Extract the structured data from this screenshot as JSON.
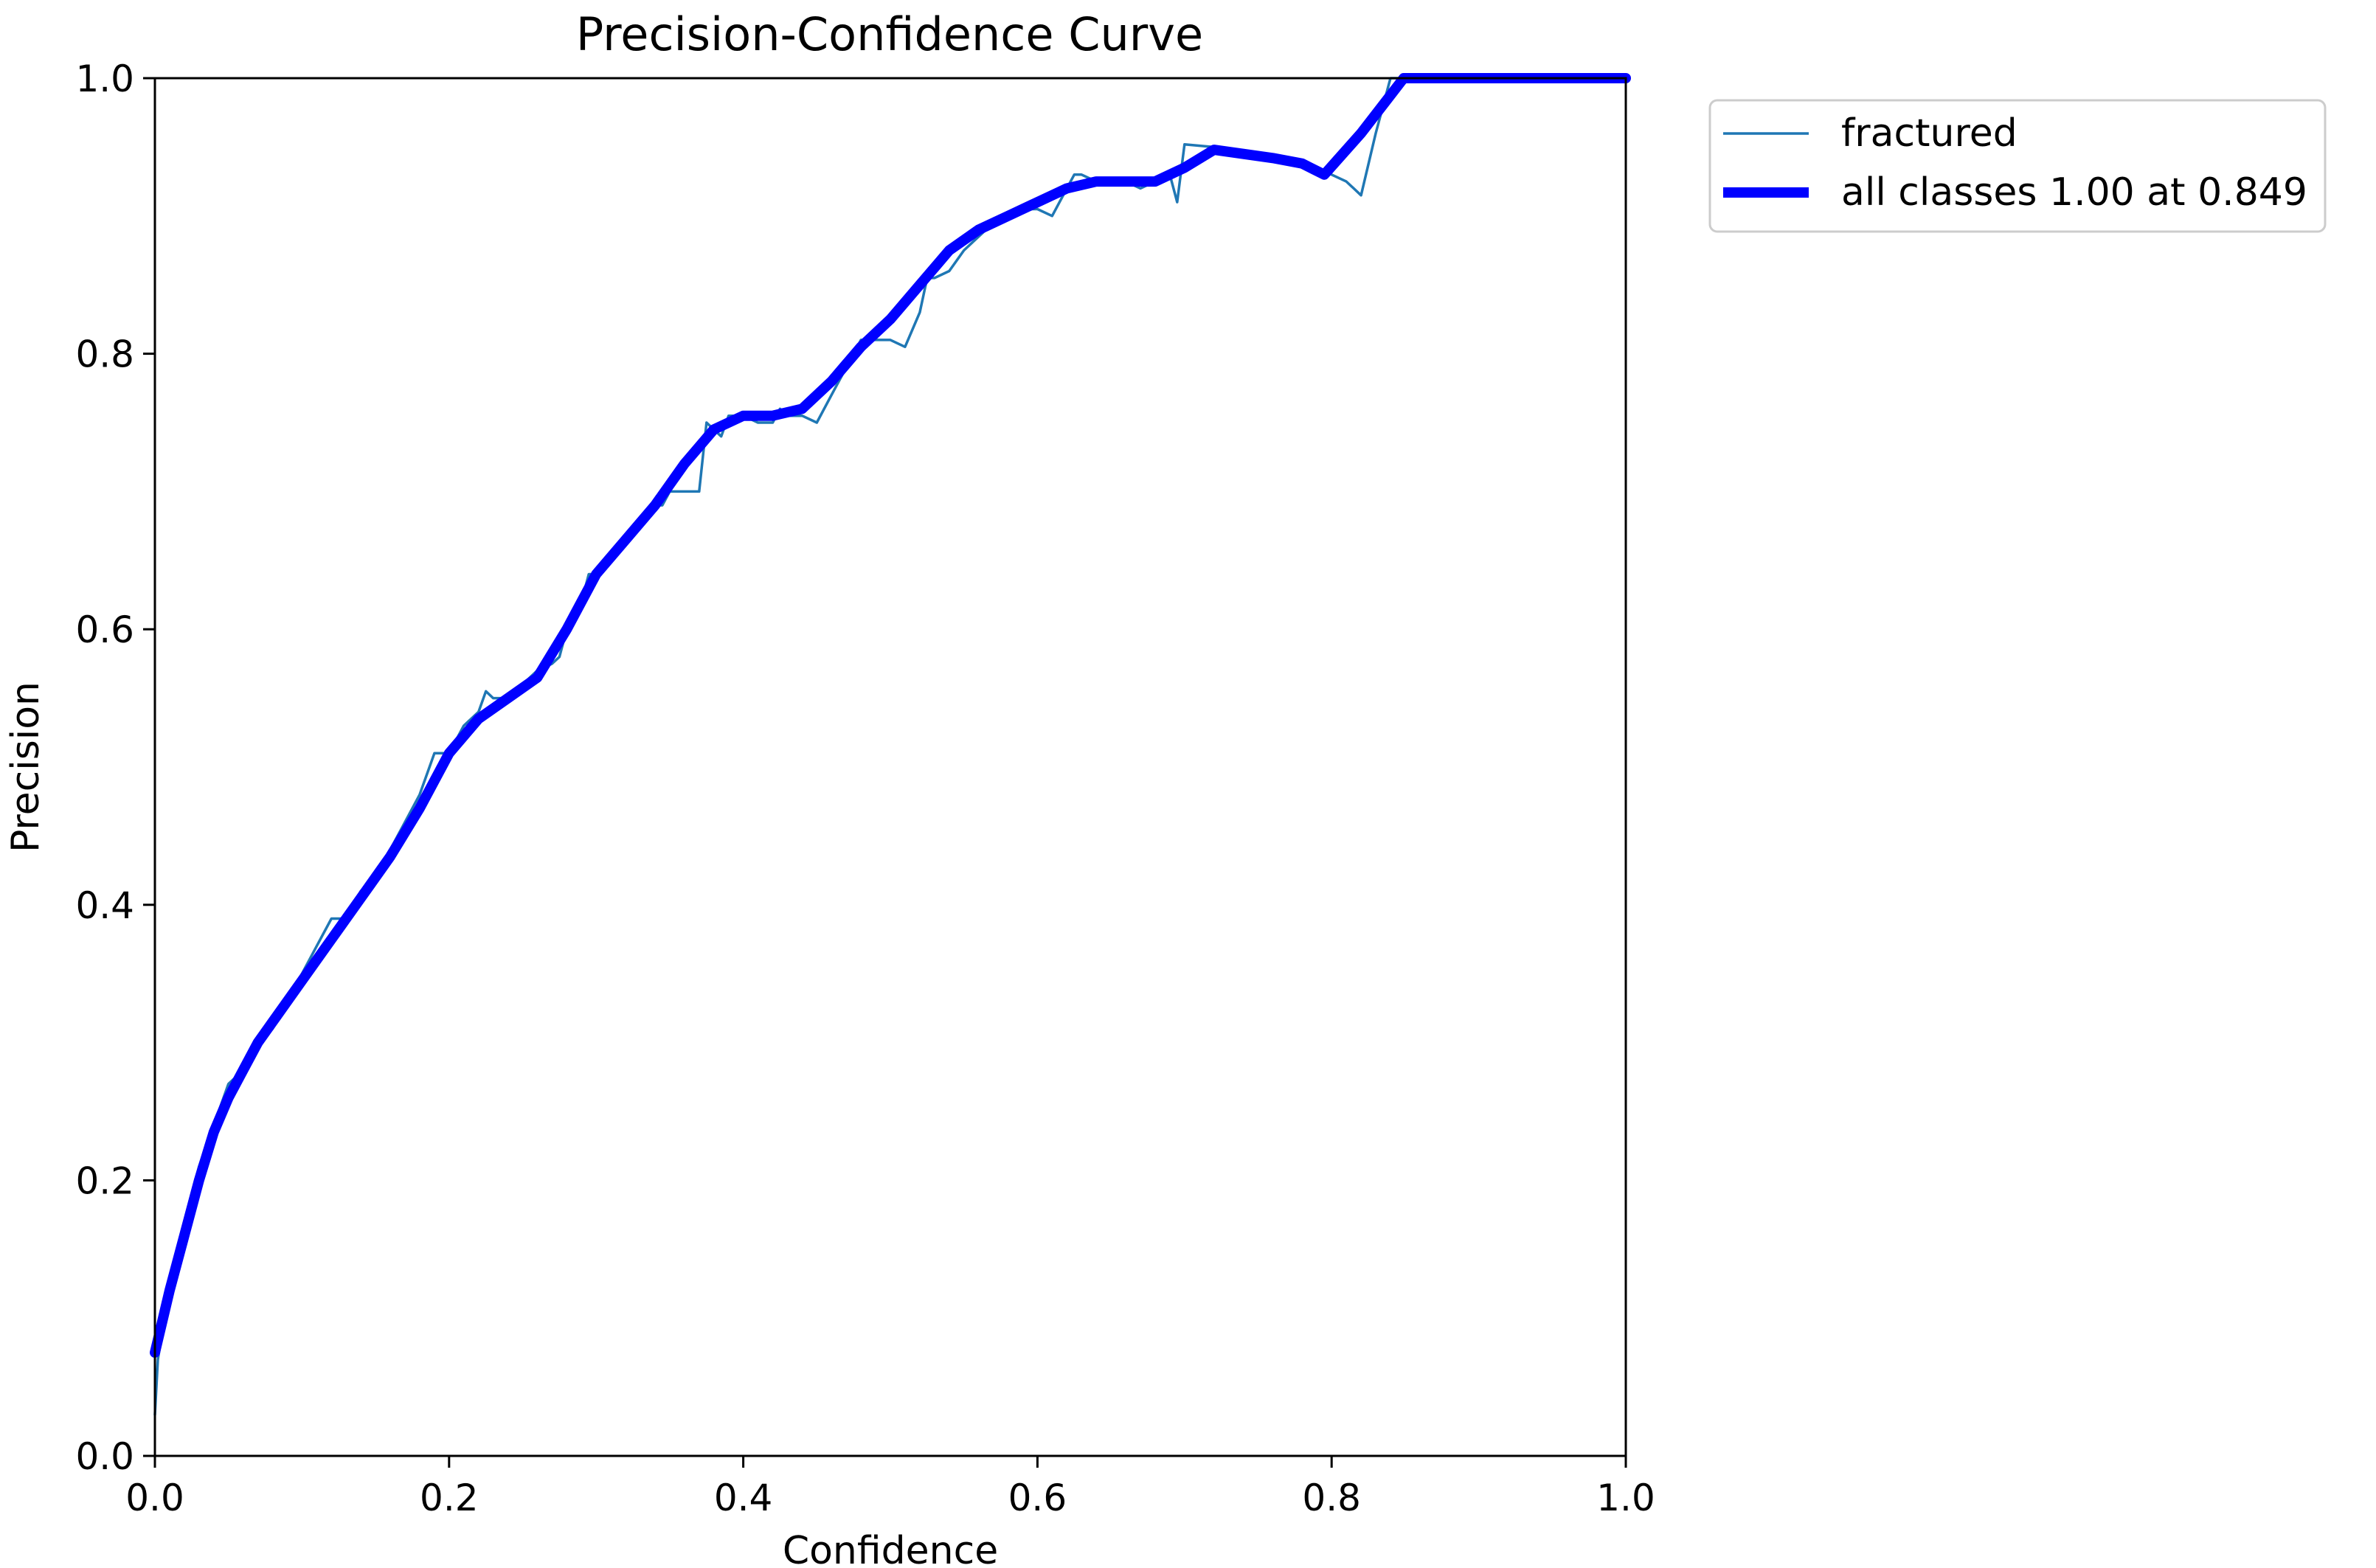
{
  "chart_data": {
    "type": "line",
    "title": "Precision-Confidence Curve",
    "xlabel": "Confidence",
    "ylabel": "Precision",
    "xlim": [
      0,
      1
    ],
    "ylim": [
      0,
      1
    ],
    "x_ticks": [
      "0.0",
      "0.2",
      "0.4",
      "0.6",
      "0.8",
      "1.0"
    ],
    "y_ticks": [
      "0.0",
      "0.2",
      "0.4",
      "0.6",
      "0.8",
      "1.0"
    ],
    "x_tick_values": [
      0,
      0.2,
      0.4,
      0.6,
      0.8,
      1.0
    ],
    "y_tick_values": [
      0,
      0.2,
      0.4,
      0.6,
      0.8,
      1.0
    ],
    "grid": false,
    "legend_position": "outside-top-right",
    "series": [
      {
        "name": "fractured",
        "color": "#1f77b4",
        "x": [
          0.0,
          0.002,
          0.005,
          0.01,
          0.02,
          0.03,
          0.04,
          0.05,
          0.06,
          0.07,
          0.08,
          0.09,
          0.1,
          0.11,
          0.12,
          0.125,
          0.13,
          0.14,
          0.15,
          0.16,
          0.17,
          0.18,
          0.19,
          0.2,
          0.21,
          0.22,
          0.225,
          0.23,
          0.24,
          0.25,
          0.26,
          0.27,
          0.275,
          0.28,
          0.29,
          0.295,
          0.3,
          0.31,
          0.32,
          0.33,
          0.34,
          0.345,
          0.35,
          0.36,
          0.37,
          0.375,
          0.38,
          0.385,
          0.39,
          0.4,
          0.41,
          0.42,
          0.425,
          0.43,
          0.44,
          0.45,
          0.46,
          0.47,
          0.48,
          0.49,
          0.5,
          0.51,
          0.52,
          0.525,
          0.53,
          0.54,
          0.55,
          0.56,
          0.57,
          0.58,
          0.59,
          0.6,
          0.61,
          0.62,
          0.625,
          0.63,
          0.64,
          0.65,
          0.66,
          0.67,
          0.68,
          0.69,
          0.695,
          0.7,
          0.72,
          0.74,
          0.76,
          0.78,
          0.79,
          0.8,
          0.81,
          0.815,
          0.82,
          0.83,
          0.84,
          0.85,
          0.9,
          0.95,
          1.0
        ],
        "values": [
          0.03,
          0.07,
          0.09,
          0.12,
          0.17,
          0.21,
          0.24,
          0.27,
          0.28,
          0.3,
          0.31,
          0.33,
          0.35,
          0.37,
          0.39,
          0.39,
          0.39,
          0.41,
          0.42,
          0.44,
          0.46,
          0.48,
          0.51,
          0.51,
          0.53,
          0.54,
          0.555,
          0.55,
          0.55,
          0.56,
          0.57,
          0.575,
          0.58,
          0.6,
          0.62,
          0.64,
          0.64,
          0.65,
          0.665,
          0.68,
          0.69,
          0.69,
          0.7,
          0.7,
          0.7,
          0.75,
          0.745,
          0.74,
          0.755,
          0.755,
          0.75,
          0.75,
          0.76,
          0.755,
          0.755,
          0.75,
          0.77,
          0.79,
          0.81,
          0.81,
          0.81,
          0.805,
          0.83,
          0.855,
          0.855,
          0.86,
          0.875,
          0.885,
          0.895,
          0.9,
          0.905,
          0.905,
          0.9,
          0.92,
          0.93,
          0.93,
          0.925,
          0.925,
          0.925,
          0.92,
          0.925,
          0.93,
          0.91,
          0.952,
          0.95,
          0.945,
          0.94,
          0.94,
          0.935,
          0.93,
          0.925,
          0.92,
          0.915,
          0.96,
          1.0,
          1.0,
          1.0,
          1.0,
          1.0
        ]
      },
      {
        "name": "all classes 1.00 at 0.849",
        "color": "#0000ff",
        "x": [
          0.0,
          0.01,
          0.02,
          0.03,
          0.04,
          0.05,
          0.06,
          0.07,
          0.08,
          0.1,
          0.12,
          0.14,
          0.16,
          0.18,
          0.2,
          0.22,
          0.24,
          0.26,
          0.28,
          0.3,
          0.32,
          0.34,
          0.36,
          0.38,
          0.4,
          0.42,
          0.44,
          0.46,
          0.48,
          0.5,
          0.52,
          0.54,
          0.56,
          0.58,
          0.6,
          0.62,
          0.64,
          0.66,
          0.68,
          0.7,
          0.72,
          0.74,
          0.76,
          0.78,
          0.795,
          0.82,
          0.849,
          0.9,
          0.95,
          1.0
        ],
        "values": [
          0.075,
          0.12,
          0.16,
          0.2,
          0.235,
          0.26,
          0.28,
          0.3,
          0.315,
          0.345,
          0.375,
          0.405,
          0.435,
          0.47,
          0.51,
          0.535,
          0.55,
          0.565,
          0.6,
          0.64,
          0.665,
          0.69,
          0.72,
          0.745,
          0.755,
          0.755,
          0.76,
          0.78,
          0.805,
          0.825,
          0.85,
          0.875,
          0.89,
          0.9,
          0.91,
          0.92,
          0.925,
          0.925,
          0.925,
          0.935,
          0.948,
          0.945,
          0.942,
          0.938,
          0.93,
          0.96,
          1.0,
          1.0,
          1.0,
          1.0
        ]
      }
    ]
  }
}
